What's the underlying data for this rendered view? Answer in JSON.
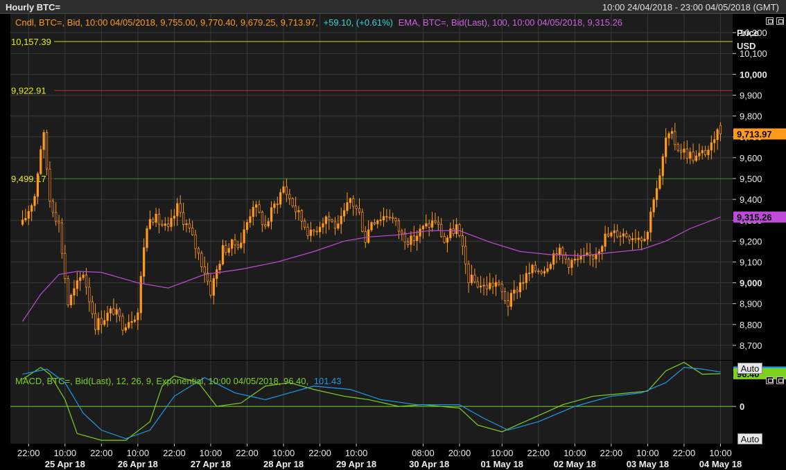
{
  "window": {
    "title": "Hourly BTC=",
    "range": "10:00 24/04/2018 - 23:00 04/05/2018 (GMT)",
    "auto_label": "Auto"
  },
  "colors": {
    "background": "#000000",
    "panel": "#1c1c1c",
    "grid": "#3a3a3a",
    "candle": "#ff9a1a",
    "ema": "#c04bd8",
    "macd": "#7fd11f",
    "signal": "#1e9be8",
    "line_yellow": "#d8d81a",
    "line_red": "#c42828",
    "line_green": "#1f9a1f",
    "text_orange": "#ff9a1a",
    "text_cyan": "#36d6d6",
    "text_magenta": "#d060e0"
  },
  "legend": {
    "candle": "Cndl, BTC=, Bid, 10:00 04/05/2018, 9,755.00, 9,770.40, 9,679.25, 9,713.97,",
    "change": "+59.10, (+0.61%)",
    "ema": "EMA, BTC=, Bid(Last),  100, 10:00 04/05/2018, 9,315.26",
    "macd": "MACD, BTC=, Bid(Last),  12, 26, 9, Exponential, 10:00 04/05/2018, 96.40,",
    "macd_signal": "101.43"
  },
  "chart_data": [
    {
      "type": "candlestick",
      "ylabel": "Price\nUSD",
      "ylim": [
        8630,
        10290
      ],
      "yticks": [
        8700,
        8800,
        8900,
        9000,
        9100,
        9200,
        9300,
        9400,
        9500,
        9600,
        9700,
        9800,
        9900,
        10000,
        10100,
        10200
      ],
      "ytick_labels": [
        "8,700",
        "8,800",
        "8,900",
        "9,000",
        "9,100",
        "9,200",
        "9,300",
        "9,400",
        "9,500",
        "9,600",
        "9,700",
        "9,800",
        "9,900",
        "10,000",
        "10,100",
        "10,200"
      ],
      "bold_ticks": [
        9000,
        10000
      ],
      "hlines": [
        {
          "value": 10157.39,
          "label": "10,157.39",
          "color": "line_yellow"
        },
        {
          "value": 9922.91,
          "label": "9,922.91",
          "color": "line_red"
        },
        {
          "value": 9499.17,
          "label": "9,499.17",
          "color": "line_green"
        }
      ],
      "last_price": {
        "value": 9713.97,
        "label": "9,713.97"
      },
      "ema_last": {
        "value": 9315.26,
        "label": "9,315.26"
      },
      "x": {
        "start": "2018-04-24 20:00",
        "end": "2018-05-04 10:00",
        "time_ticks": [
          {
            "t": "2018-04-24 22:00",
            "label": "22:00"
          },
          {
            "t": "2018-04-25 10:00",
            "label": "10:00"
          },
          {
            "t": "2018-04-25 22:00",
            "label": "22:00"
          },
          {
            "t": "2018-04-26 10:00",
            "label": "10:00"
          },
          {
            "t": "2018-04-26 22:00",
            "label": "22:00"
          },
          {
            "t": "2018-04-27 10:00",
            "label": "10:00"
          },
          {
            "t": "2018-04-27 22:00",
            "label": "22:00"
          },
          {
            "t": "2018-04-28 10:00",
            "label": "10:00"
          },
          {
            "t": "2018-04-28 22:00",
            "label": "22:00"
          },
          {
            "t": "2018-04-29 10:00",
            "label": "10:00"
          },
          {
            "t": "2018-04-30 08:00",
            "label": "08:00"
          },
          {
            "t": "2018-04-30 20:00",
            "label": "20:00"
          },
          {
            "t": "2018-05-01 10:00",
            "label": "10:00"
          },
          {
            "t": "2018-05-01 22:00",
            "label": "22:00"
          },
          {
            "t": "2018-05-02 10:00",
            "label": "10:00"
          },
          {
            "t": "2018-05-02 22:00",
            "label": "22:00"
          },
          {
            "t": "2018-05-03 10:00",
            "label": "10:00"
          },
          {
            "t": "2018-05-03 22:00",
            "label": "22:00"
          },
          {
            "t": "2018-05-04 10:00",
            "label": "10:00"
          }
        ],
        "date_ticks": [
          {
            "t": "2018-04-25 10:00",
            "label": "25 Apr 18"
          },
          {
            "t": "2018-04-26 10:00",
            "label": "26 Apr 18"
          },
          {
            "t": "2018-04-27 10:00",
            "label": "27 Apr 18"
          },
          {
            "t": "2018-04-28 10:00",
            "label": "28 Apr 18"
          },
          {
            "t": "2018-04-29 10:00",
            "label": "29 Apr 18"
          },
          {
            "t": "2018-04-30 10:00",
            "label": "30 Apr 18"
          },
          {
            "t": "2018-05-01 10:00",
            "label": "01 May 18"
          },
          {
            "t": "2018-05-02 10:00",
            "label": "02 May 18"
          },
          {
            "t": "2018-05-03 10:00",
            "label": "03 May 18"
          },
          {
            "t": "2018-05-04 10:00",
            "label": "04 May 18"
          }
        ]
      },
      "price_path": [
        {
          "t": "2018-04-24 20:00",
          "v": 9280
        },
        {
          "t": "2018-04-25 00:00",
          "v": 9420
        },
        {
          "t": "2018-04-25 02:00",
          "v": 9650
        },
        {
          "t": "2018-04-25 03:00",
          "v": 9700
        },
        {
          "t": "2018-04-25 05:00",
          "v": 9400
        },
        {
          "t": "2018-04-25 08:00",
          "v": 9280
        },
        {
          "t": "2018-04-25 11:00",
          "v": 8900
        },
        {
          "t": "2018-04-25 16:00",
          "v": 9050
        },
        {
          "t": "2018-04-25 20:00",
          "v": 8800
        },
        {
          "t": "2018-04-26 02:00",
          "v": 8870
        },
        {
          "t": "2018-04-26 05:00",
          "v": 8800
        },
        {
          "t": "2018-04-26 10:00",
          "v": 8860
        },
        {
          "t": "2018-04-26 12:00",
          "v": 9180
        },
        {
          "t": "2018-04-26 14:00",
          "v": 9330
        },
        {
          "t": "2018-04-26 20:00",
          "v": 9250
        },
        {
          "t": "2018-04-26 23:00",
          "v": 9360
        },
        {
          "t": "2018-04-27 03:00",
          "v": 9250
        },
        {
          "t": "2018-04-27 08:00",
          "v": 9060
        },
        {
          "t": "2018-04-27 10:00",
          "v": 8960
        },
        {
          "t": "2018-04-27 14:00",
          "v": 9160
        },
        {
          "t": "2018-04-27 20:00",
          "v": 9200
        },
        {
          "t": "2018-04-28 00:00",
          "v": 9380
        },
        {
          "t": "2018-04-28 04:00",
          "v": 9270
        },
        {
          "t": "2018-04-28 06:00",
          "v": 9340
        },
        {
          "t": "2018-04-28 10:00",
          "v": 9460
        },
        {
          "t": "2018-04-28 14:00",
          "v": 9350
        },
        {
          "t": "2018-04-28 19:00",
          "v": 9230
        },
        {
          "t": "2018-04-29 00:00",
          "v": 9320
        },
        {
          "t": "2018-04-29 04:00",
          "v": 9260
        },
        {
          "t": "2018-04-29 08:00",
          "v": 9400
        },
        {
          "t": "2018-04-29 11:00",
          "v": 9330
        },
        {
          "t": "2018-04-29 13:00",
          "v": 9210
        },
        {
          "t": "2018-04-29 15:00",
          "v": 9300
        },
        {
          "t": "2018-04-29 21:00",
          "v": 9330
        },
        {
          "t": "2018-04-30 01:00",
          "v": 9230
        },
        {
          "t": "2018-04-30 04:00",
          "v": 9200
        },
        {
          "t": "2018-04-30 08:00",
          "v": 9260
        },
        {
          "t": "2018-04-30 12:00",
          "v": 9300
        },
        {
          "t": "2018-04-30 15:00",
          "v": 9200
        },
        {
          "t": "2018-04-30 19:00",
          "v": 9270
        },
        {
          "t": "2018-04-30 21:00",
          "v": 9150
        },
        {
          "t": "2018-04-30 23:00",
          "v": 9020
        },
        {
          "t": "2018-05-01 04:00",
          "v": 8980
        },
        {
          "t": "2018-05-01 08:00",
          "v": 9000
        },
        {
          "t": "2018-05-01 12:00",
          "v": 8900
        },
        {
          "t": "2018-05-01 16:00",
          "v": 9000
        },
        {
          "t": "2018-05-01 20:00",
          "v": 9060
        },
        {
          "t": "2018-05-02 00:00",
          "v": 9070
        },
        {
          "t": "2018-05-02 04:00",
          "v": 9160
        },
        {
          "t": "2018-05-02 08:00",
          "v": 9100
        },
        {
          "t": "2018-05-02 12:00",
          "v": 9110
        },
        {
          "t": "2018-05-02 16:00",
          "v": 9130
        },
        {
          "t": "2018-05-02 20:00",
          "v": 9220
        },
        {
          "t": "2018-05-03 00:00",
          "v": 9240
        },
        {
          "t": "2018-05-03 04:00",
          "v": 9230
        },
        {
          "t": "2018-05-03 08:00",
          "v": 9220
        },
        {
          "t": "2018-05-03 10:00",
          "v": 9250
        },
        {
          "t": "2018-05-03 12:00",
          "v": 9420
        },
        {
          "t": "2018-05-03 14:00",
          "v": 9500
        },
        {
          "t": "2018-05-03 16:00",
          "v": 9690
        },
        {
          "t": "2018-05-03 18:00",
          "v": 9700
        },
        {
          "t": "2018-05-03 20:00",
          "v": 9650
        },
        {
          "t": "2018-05-03 23:00",
          "v": 9620
        },
        {
          "t": "2018-05-04 02:00",
          "v": 9600
        },
        {
          "t": "2018-05-04 06:00",
          "v": 9640
        },
        {
          "t": "2018-05-04 08:00",
          "v": 9660
        },
        {
          "t": "2018-05-04 09:00",
          "v": 9755
        },
        {
          "t": "2018-05-04 10:00",
          "v": 9713.97
        }
      ],
      "ema_path": [
        {
          "t": "2018-04-24 20:00",
          "v": 8815
        },
        {
          "t": "2018-04-25 02:00",
          "v": 8945
        },
        {
          "t": "2018-04-25 08:00",
          "v": 9040
        },
        {
          "t": "2018-04-25 14:00",
          "v": 9055
        },
        {
          "t": "2018-04-25 22:00",
          "v": 9050
        },
        {
          "t": "2018-04-26 10:00",
          "v": 9000
        },
        {
          "t": "2018-04-26 20:00",
          "v": 8975
        },
        {
          "t": "2018-04-27 08:00",
          "v": 9040
        },
        {
          "t": "2018-04-27 20:00",
          "v": 9065
        },
        {
          "t": "2018-04-28 08:00",
          "v": 9100
        },
        {
          "t": "2018-04-28 20:00",
          "v": 9150
        },
        {
          "t": "2018-04-29 06:00",
          "v": 9200
        },
        {
          "t": "2018-04-29 14:00",
          "v": 9220
        },
        {
          "t": "2018-04-30 00:00",
          "v": 9230
        },
        {
          "t": "2018-04-30 10:00",
          "v": 9250
        },
        {
          "t": "2018-04-30 20:00",
          "v": 9250
        },
        {
          "t": "2018-05-01 06:00",
          "v": 9195
        },
        {
          "t": "2018-05-01 16:00",
          "v": 9150
        },
        {
          "t": "2018-05-02 02:00",
          "v": 9135
        },
        {
          "t": "2018-05-02 12:00",
          "v": 9130
        },
        {
          "t": "2018-05-02 22:00",
          "v": 9145
        },
        {
          "t": "2018-05-03 08:00",
          "v": 9160
        },
        {
          "t": "2018-05-03 16:00",
          "v": 9200
        },
        {
          "t": "2018-05-04 00:00",
          "v": 9260
        },
        {
          "t": "2018-05-04 10:00",
          "v": 9315.26
        }
      ]
    },
    {
      "type": "line",
      "ylim": [
        -110,
        135
      ],
      "yticks": [
        0
      ],
      "ytick_labels": [
        "0"
      ],
      "value_tags": [
        {
          "series": "signal",
          "value": 101.43,
          "label": "101.43"
        },
        {
          "series": "macd",
          "value": 96.4,
          "label": "96.40"
        }
      ],
      "series": [
        {
          "key": "macd",
          "path": [
            {
              "t": "2018-04-24 20:00",
              "v": 80
            },
            {
              "t": "2018-04-25 02:00",
              "v": 115
            },
            {
              "t": "2018-04-25 05:00",
              "v": 95
            },
            {
              "t": "2018-04-25 10:00",
              "v": 20
            },
            {
              "t": "2018-04-25 14:00",
              "v": -80
            },
            {
              "t": "2018-04-25 18:00",
              "v": -90
            },
            {
              "t": "2018-04-25 22:00",
              "v": -100
            },
            {
              "t": "2018-04-26 06:00",
              "v": -100
            },
            {
              "t": "2018-04-26 14:00",
              "v": -45
            },
            {
              "t": "2018-04-26 18:00",
              "v": 60
            },
            {
              "t": "2018-04-26 22:00",
              "v": 90
            },
            {
              "t": "2018-04-27 06:00",
              "v": 70
            },
            {
              "t": "2018-04-27 12:00",
              "v": 0
            },
            {
              "t": "2018-04-27 20:00",
              "v": 10
            },
            {
              "t": "2018-04-28 04:00",
              "v": 60
            },
            {
              "t": "2018-04-28 12:00",
              "v": 70
            },
            {
              "t": "2018-04-28 20:00",
              "v": 50
            },
            {
              "t": "2018-04-29 06:00",
              "v": 30
            },
            {
              "t": "2018-04-29 14:00",
              "v": 20
            },
            {
              "t": "2018-04-30 00:00",
              "v": 0
            },
            {
              "t": "2018-04-30 08:00",
              "v": 5
            },
            {
              "t": "2018-04-30 20:00",
              "v": -5
            },
            {
              "t": "2018-05-01 02:00",
              "v": -55
            },
            {
              "t": "2018-05-01 10:00",
              "v": -75
            },
            {
              "t": "2018-05-01 20:00",
              "v": -35
            },
            {
              "t": "2018-05-02 06:00",
              "v": 5
            },
            {
              "t": "2018-05-02 16:00",
              "v": 30
            },
            {
              "t": "2018-05-03 04:00",
              "v": 40
            },
            {
              "t": "2018-05-03 10:00",
              "v": 45
            },
            {
              "t": "2018-05-03 16:00",
              "v": 105
            },
            {
              "t": "2018-05-03 22:00",
              "v": 130
            },
            {
              "t": "2018-05-04 04:00",
              "v": 95
            },
            {
              "t": "2018-05-04 10:00",
              "v": 96.4
            }
          ]
        },
        {
          "key": "signal",
          "path": [
            {
              "t": "2018-04-24 20:00",
              "v": 95
            },
            {
              "t": "2018-04-25 04:00",
              "v": 110
            },
            {
              "t": "2018-04-25 10:00",
              "v": 70
            },
            {
              "t": "2018-04-25 16:00",
              "v": -20
            },
            {
              "t": "2018-04-25 22:00",
              "v": -70
            },
            {
              "t": "2018-04-26 06:00",
              "v": -95
            },
            {
              "t": "2018-04-26 14:00",
              "v": -70
            },
            {
              "t": "2018-04-26 22:00",
              "v": 30
            },
            {
              "t": "2018-04-27 08:00",
              "v": 85
            },
            {
              "t": "2018-04-27 18:00",
              "v": 40
            },
            {
              "t": "2018-04-28 04:00",
              "v": 20
            },
            {
              "t": "2018-04-28 12:00",
              "v": 40
            },
            {
              "t": "2018-04-28 20:00",
              "v": 60
            },
            {
              "t": "2018-04-29 08:00",
              "v": 50
            },
            {
              "t": "2018-04-29 18:00",
              "v": 20
            },
            {
              "t": "2018-04-30 06:00",
              "v": 5
            },
            {
              "t": "2018-04-30 20:00",
              "v": 5
            },
            {
              "t": "2018-05-01 04:00",
              "v": -35
            },
            {
              "t": "2018-05-01 12:00",
              "v": -70
            },
            {
              "t": "2018-05-01 22:00",
              "v": -45
            },
            {
              "t": "2018-05-02 10:00",
              "v": 0
            },
            {
              "t": "2018-05-02 22:00",
              "v": 30
            },
            {
              "t": "2018-05-03 08:00",
              "v": 40
            },
            {
              "t": "2018-05-03 16:00",
              "v": 70
            },
            {
              "t": "2018-05-03 22:00",
              "v": 115
            },
            {
              "t": "2018-05-04 04:00",
              "v": 110
            },
            {
              "t": "2018-05-04 10:00",
              "v": 101.43
            }
          ]
        }
      ]
    }
  ]
}
